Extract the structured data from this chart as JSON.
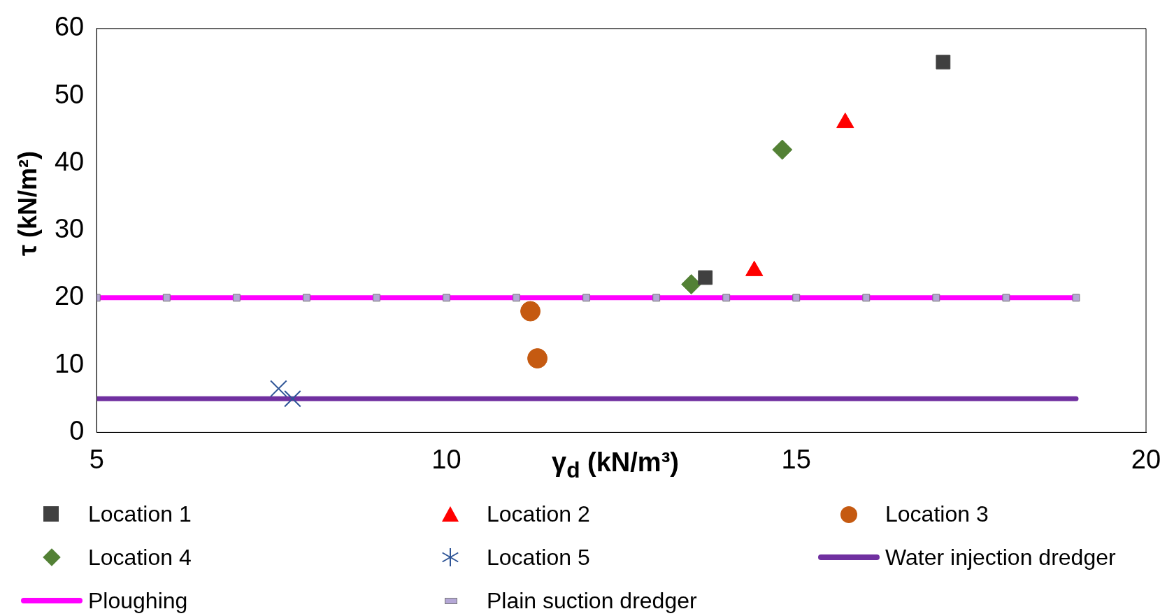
{
  "chart_data": {
    "type": "scatter",
    "xlabel": "γ$_{d}$ (kN/m³)",
    "ylabel": "τ (kN/m²)",
    "xlim": [
      5,
      20
    ],
    "xticks": [
      5,
      10,
      15,
      20
    ],
    "ylim": [
      0,
      60
    ],
    "yticks": [
      0,
      10,
      20,
      30,
      40,
      50,
      60
    ],
    "grid": false,
    "legend": "bottom",
    "series": [
      {
        "name": "Plain suction dredger",
        "type": "scatter",
        "marker": "square",
        "color": "#b4a7d6",
        "x": [
          5,
          6,
          7,
          8,
          9,
          10,
          11,
          12,
          13,
          14,
          15,
          16,
          17,
          18,
          19
        ],
        "values": [
          20,
          20,
          20,
          20,
          20,
          20,
          20,
          20,
          20,
          20,
          20,
          20,
          20,
          20,
          20
        ]
      },
      {
        "name": "Location 1",
        "type": "scatter",
        "marker": "square",
        "color": "#404040",
        "x": [
          13.7,
          17.1
        ],
        "values": [
          23,
          55
        ]
      },
      {
        "name": "Location 2",
        "type": "scatter",
        "marker": "triangle",
        "color": "#ff0000",
        "x": [
          14.4,
          15.7
        ],
        "values": [
          24,
          46
        ]
      },
      {
        "name": "Location 3",
        "type": "scatter",
        "marker": "circle",
        "color": "#c55a11",
        "x": [
          11.2,
          11.3
        ],
        "values": [
          18,
          11
        ]
      },
      {
        "name": "Location 4",
        "type": "scatter",
        "marker": "diamond",
        "color": "#538135",
        "x": [
          13.5,
          14.8
        ],
        "values": [
          22,
          42
        ]
      },
      {
        "name": "Location 5",
        "type": "scatter",
        "marker": "cross",
        "color": "#2f5597",
        "x": [
          7.6,
          7.8
        ],
        "values": [
          6.5,
          5
        ]
      },
      {
        "name": "Water injection dredger",
        "type": "line",
        "marker": "none",
        "color": "#7030a0",
        "x": [
          5,
          19
        ],
        "values": [
          5,
          5
        ]
      },
      {
        "name": "Ploughing",
        "type": "line",
        "marker": "none",
        "color": "#ff00ff",
        "x": [
          5,
          19
        ],
        "values": [
          20,
          20
        ]
      }
    ]
  }
}
